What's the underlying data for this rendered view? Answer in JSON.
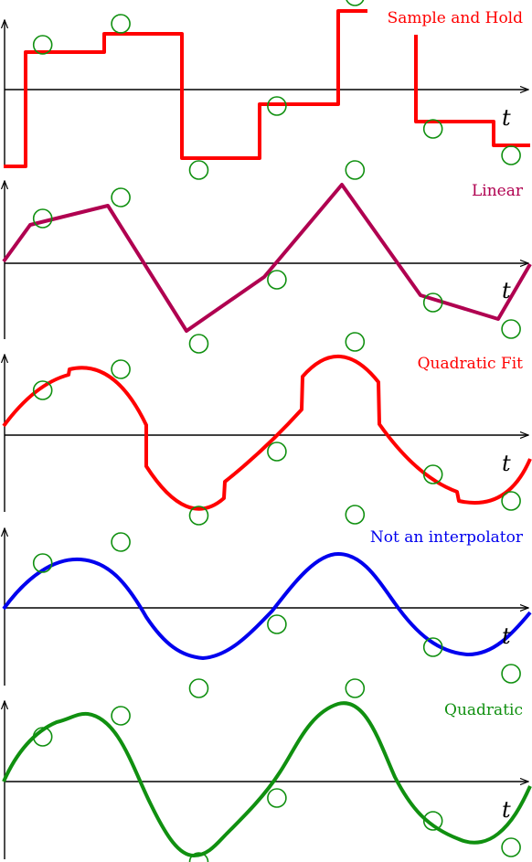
{
  "axis_label": "t",
  "samples": [
    {
      "t": 0.5,
      "v": 0.49
    },
    {
      "t": 1.5,
      "v": 0.72
    },
    {
      "t": 2.5,
      "v": -0.88
    },
    {
      "t": 3.5,
      "v": -0.18
    },
    {
      "t": 4.5,
      "v": 1.02
    },
    {
      "t": 5.5,
      "v": -0.43
    },
    {
      "t": 6.5,
      "v": -0.72
    }
  ],
  "colors": {
    "sample_marker": "#109010",
    "sample_and_hold": "#ff0000",
    "linear": "#b00050",
    "quadratic_fit": "#ff0000",
    "not_interpolator": "#0000ee",
    "quadratic": "#109010"
  },
  "panels": [
    {
      "id": "sample-and-hold",
      "label": "Sample and Hold",
      "color": "#ff0000"
    },
    {
      "id": "linear",
      "label": "Linear",
      "color": "#b00050"
    },
    {
      "id": "quadratic-fit",
      "label": "Quadratic Fit",
      "color": "#ff0000"
    },
    {
      "id": "not-interpolator",
      "label": "Not an interpolator",
      "color": "#0000ee"
    },
    {
      "id": "quadratic",
      "label": "Quadratic",
      "color": "#109010"
    }
  ]
}
